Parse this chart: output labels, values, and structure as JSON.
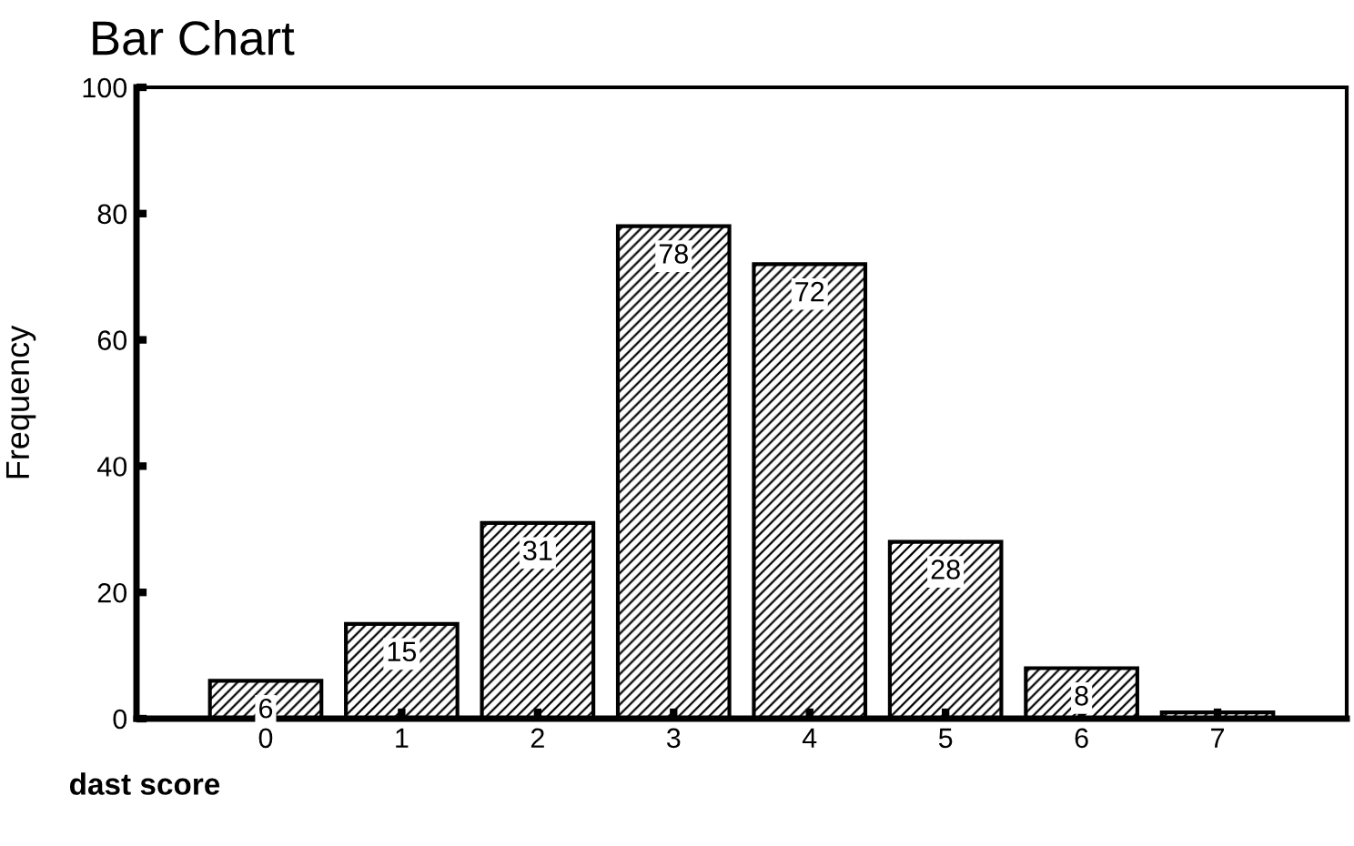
{
  "chart_data": {
    "type": "bar",
    "title": "Bar Chart",
    "xlabel": "dast score",
    "ylabel": "Frequency",
    "categories": [
      "0",
      "1",
      "2",
      "3",
      "4",
      "5",
      "6",
      "7"
    ],
    "values": [
      6,
      15,
      31,
      78,
      72,
      28,
      8,
      1
    ],
    "value_labels": [
      "6",
      "15",
      "31",
      "78",
      "72",
      "28",
      "8",
      null
    ],
    "color": "#000000",
    "ylim": [
      0,
      100
    ],
    "yticks": [
      0,
      20,
      40,
      60,
      80,
      100
    ],
    "grid": false
  }
}
